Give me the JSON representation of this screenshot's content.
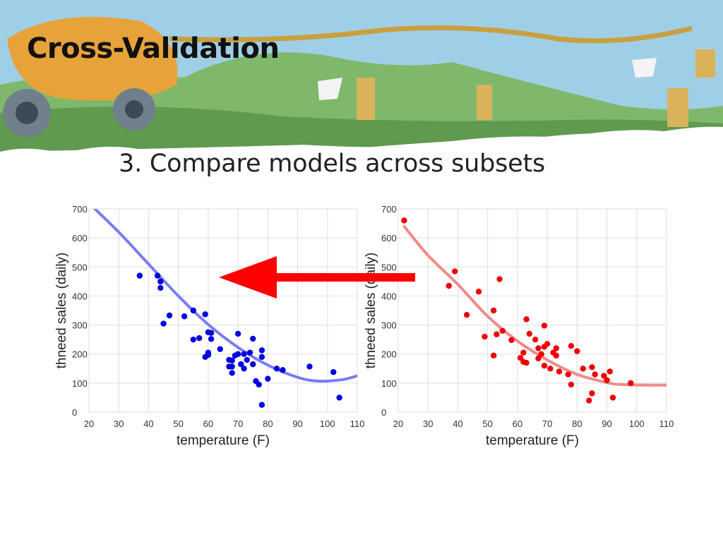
{
  "slide": {
    "title": "Cross-Validation",
    "subtitle": "3. Compare models across subsets"
  },
  "colors": {
    "blue_points": "#0000dd",
    "blue_curve": "#7a7cf0",
    "red_points": "#ee0000",
    "red_curve": "#f08a8a",
    "arrow": "#ff0000",
    "grid": "#dddddd"
  },
  "arrow": {
    "direction": "left",
    "icon": "left-arrow-icon"
  },
  "chart_data": [
    {
      "type": "scatter",
      "title": "",
      "xlabel": "temperature (F)",
      "ylabel": "thneed sales (daily)",
      "xlim": [
        20,
        110
      ],
      "ylim": [
        0,
        700
      ],
      "xticks": [
        20,
        30,
        40,
        50,
        60,
        70,
        80,
        90,
        100,
        110
      ],
      "yticks": [
        0,
        100,
        200,
        300,
        400,
        500,
        600,
        700
      ],
      "grid": true,
      "points": [
        [
          37,
          470
        ],
        [
          43,
          470
        ],
        [
          44,
          450
        ],
        [
          44,
          428
        ],
        [
          45,
          305
        ],
        [
          47,
          333
        ],
        [
          52,
          330
        ],
        [
          55,
          350
        ],
        [
          55,
          250
        ],
        [
          57,
          255
        ],
        [
          59,
          337
        ],
        [
          59,
          190
        ],
        [
          60,
          275
        ],
        [
          60,
          205
        ],
        [
          60,
          197
        ],
        [
          61,
          273
        ],
        [
          61,
          252
        ],
        [
          64,
          217
        ],
        [
          67,
          180
        ],
        [
          67,
          157
        ],
        [
          68,
          135
        ],
        [
          68,
          157
        ],
        [
          68,
          178
        ],
        [
          69,
          195
        ],
        [
          70,
          270
        ],
        [
          70,
          200
        ],
        [
          71,
          165
        ],
        [
          72,
          150
        ],
        [
          72,
          200
        ],
        [
          73,
          180
        ],
        [
          74,
          205
        ],
        [
          75,
          253
        ],
        [
          75,
          165
        ],
        [
          76,
          107
        ],
        [
          77,
          95
        ],
        [
          78,
          213
        ],
        [
          78,
          190
        ],
        [
          78,
          25
        ],
        [
          80,
          115
        ],
        [
          83,
          150
        ],
        [
          85,
          145
        ],
        [
          94,
          157
        ],
        [
          102,
          138
        ],
        [
          104,
          50
        ]
      ],
      "fit_curve": {
        "x": [
          22,
          30,
          40,
          50,
          60,
          70,
          80,
          90,
          97,
          105,
          110
        ],
        "y": [
          700,
          620,
          510,
          400,
          302,
          223,
          162,
          120,
          107,
          112,
          125
        ]
      }
    },
    {
      "type": "scatter",
      "title": "",
      "xlabel": "temperature (F)",
      "ylabel": "thneed sales (daily)",
      "xlim": [
        20,
        110
      ],
      "ylim": [
        0,
        700
      ],
      "xticks": [
        20,
        30,
        40,
        50,
        60,
        70,
        80,
        90,
        100,
        110
      ],
      "yticks": [
        0,
        100,
        200,
        300,
        400,
        500,
        600,
        700
      ],
      "grid": true,
      "points": [
        [
          22,
          660
        ],
        [
          37,
          435
        ],
        [
          39,
          485
        ],
        [
          43,
          335
        ],
        [
          47,
          415
        ],
        [
          49,
          260
        ],
        [
          52,
          350
        ],
        [
          52,
          195
        ],
        [
          53,
          268
        ],
        [
          54,
          458
        ],
        [
          55,
          280
        ],
        [
          58,
          248
        ],
        [
          61,
          187
        ],
        [
          62,
          205
        ],
        [
          62,
          173
        ],
        [
          63,
          320
        ],
        [
          63,
          170
        ],
        [
          64,
          270
        ],
        [
          66,
          250
        ],
        [
          67,
          185
        ],
        [
          67,
          220
        ],
        [
          68,
          200
        ],
        [
          69,
          298
        ],
        [
          69,
          225
        ],
        [
          69,
          160
        ],
        [
          70,
          235
        ],
        [
          71,
          150
        ],
        [
          72,
          205
        ],
        [
          73,
          195
        ],
        [
          73,
          220
        ],
        [
          74,
          140
        ],
        [
          77,
          130
        ],
        [
          78,
          228
        ],
        [
          78,
          95
        ],
        [
          80,
          210
        ],
        [
          82,
          150
        ],
        [
          84,
          40
        ],
        [
          85,
          155
        ],
        [
          85,
          65
        ],
        [
          86,
          130
        ],
        [
          89,
          125
        ],
        [
          90,
          110
        ],
        [
          91,
          140
        ],
        [
          92,
          50
        ],
        [
          98,
          100
        ]
      ],
      "fit_curve": {
        "x": [
          22,
          30,
          40,
          50,
          60,
          70,
          80,
          90,
          95,
          105,
          110
        ],
        "y": [
          640,
          540,
          440,
          330,
          245,
          180,
          130,
          102,
          95,
          93,
          93
        ]
      }
    }
  ]
}
